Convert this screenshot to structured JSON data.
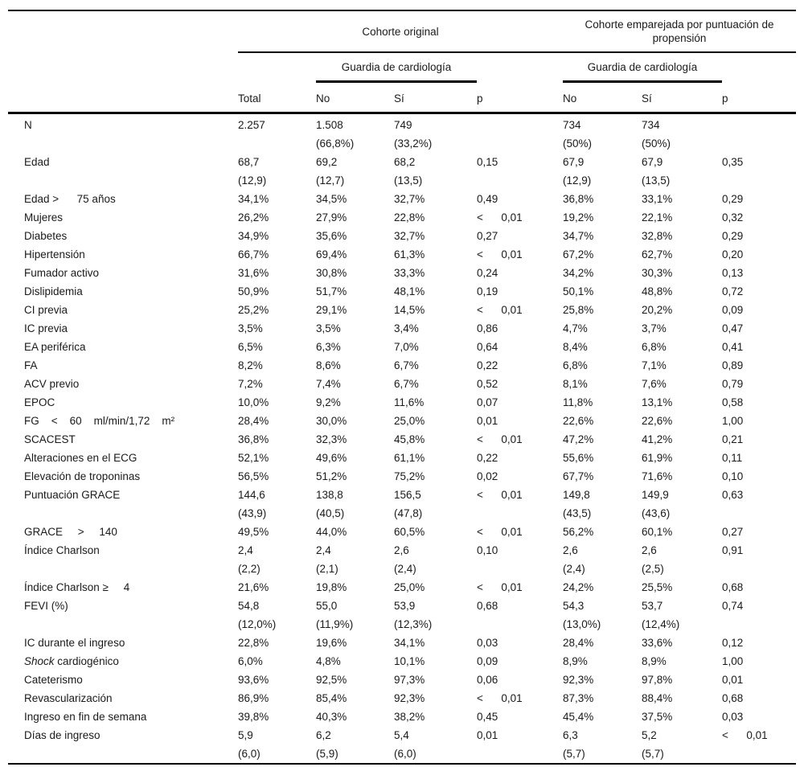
{
  "table": {
    "header": {
      "group_original": "Cohorte original",
      "group_matched": "Cohorte emparejada por puntuación de\npropensión",
      "subgroup_left": "Guardia de cardiología",
      "subgroup_right": "Guardia de cardiología",
      "columns": [
        "Total",
        "No",
        "Sí",
        "p",
        "No",
        "Sí",
        "p"
      ]
    },
    "rows": [
      {
        "label": "N",
        "cells": [
          "2.257",
          "1.508\n(66,8%)",
          "749\n(33,2%)",
          "",
          "734\n(50%)",
          "734\n(50%)",
          ""
        ]
      },
      {
        "label": "Edad",
        "cells": [
          "68,7\n(12,9)",
          "69,2\n(12,7)",
          "68,2\n(13,5)",
          "0,15",
          "67,9\n(12,9)",
          "67,9\n(13,5)",
          "0,35"
        ]
      },
      {
        "label": "Edad >      75 años",
        "cells": [
          "34,1%",
          "34,5%",
          "32,7%",
          "0,49",
          "36,8%",
          "33,1%",
          "0,29"
        ]
      },
      {
        "label": "Mujeres",
        "cells": [
          "26,2%",
          "27,9%",
          "22,8%",
          "<      0,01",
          "19,2%",
          "22,1%",
          "0,32"
        ]
      },
      {
        "label": "Diabetes",
        "cells": [
          "34,9%",
          "35,6%",
          "32,7%",
          "0,27",
          "34,7%",
          "32,8%",
          "0,29"
        ]
      },
      {
        "label": "Hipertensión",
        "cells": [
          "66,7%",
          "69,4%",
          "61,3%",
          "<      0,01",
          "67,2%",
          "62,7%",
          "0,20"
        ]
      },
      {
        "label": "Fumador activo",
        "cells": [
          "31,6%",
          "30,8%",
          "33,3%",
          "0,24",
          "34,2%",
          "30,3%",
          "0,13"
        ]
      },
      {
        "label": "Dislipidemia",
        "cells": [
          "50,9%",
          "51,7%",
          "48,1%",
          "0,19",
          "50,1%",
          "48,8%",
          "0,72"
        ]
      },
      {
        "label": "CI previa",
        "cells": [
          "25,2%",
          "29,1%",
          "14,5%",
          "<      0,01",
          "25,8%",
          "20,2%",
          "0,09"
        ]
      },
      {
        "label": "IC previa",
        "cells": [
          "3,5%",
          "3,5%",
          "3,4%",
          "0,86",
          "4,7%",
          "3,7%",
          "0,47"
        ]
      },
      {
        "label": "EA periférica",
        "cells": [
          "6,5%",
          "6,3%",
          "7,0%",
          "0,64",
          "8,4%",
          "6,8%",
          "0,41"
        ]
      },
      {
        "label": "FA",
        "cells": [
          "8,2%",
          "8,6%",
          "6,7%",
          "0,22",
          "6,8%",
          "7,1%",
          "0,89"
        ]
      },
      {
        "label": "ACV previo",
        "cells": [
          "7,2%",
          "7,4%",
          "6,7%",
          "0,52",
          "8,1%",
          "7,6%",
          "0,79"
        ]
      },
      {
        "label": "EPOC",
        "cells": [
          "10,0%",
          "9,2%",
          "11,6%",
          "0,07",
          "11,8%",
          "13,1%",
          "0,58"
        ]
      },
      {
        "label": "FG    <    60    ml/min/1,72    m²",
        "cells": [
          "28,4%",
          "30,0%",
          "25,0%",
          "0,01",
          "22,6%",
          "22,6%",
          "1,00"
        ]
      },
      {
        "label": "SCACEST",
        "cells": [
          "36,8%",
          "32,3%",
          "45,8%",
          "<      0,01",
          "47,2%",
          "41,2%",
          "0,21"
        ]
      },
      {
        "label": "Alteraciones en el ECG",
        "cells": [
          "52,1%",
          "49,6%",
          "61,1%",
          "0,22",
          "55,6%",
          "61,9%",
          "0,11"
        ]
      },
      {
        "label": "Elevación de troponinas",
        "cells": [
          "56,5%",
          "51,2%",
          "75,2%",
          "0,02",
          "67,7%",
          "71,6%",
          "0,10"
        ]
      },
      {
        "label": "Puntuación GRACE",
        "cells": [
          "144,6\n(43,9)",
          "138,8\n(40,5)",
          "156,5\n(47,8)",
          "<      0,01",
          "149,8\n(43,5)",
          "149,9\n(43,6)",
          "0,63"
        ]
      },
      {
        "label": "GRACE     >     140",
        "cells": [
          "49,5%",
          "44,0%",
          "60,5%",
          "<      0,01",
          "56,2%",
          "60,1%",
          "0,27"
        ]
      },
      {
        "label": "Índice Charlson",
        "cells": [
          "2,4\n(2,2)",
          "2,4\n(2,1)",
          "2,6\n(2,4)",
          "0,10",
          "2,6\n(2,4)",
          "2,6\n(2,5)",
          "0,91"
        ]
      },
      {
        "label": "Índice Charlson ≥     4",
        "cells": [
          "21,6%",
          "19,8%",
          "25,0%",
          "<      0,01",
          "24,2%",
          "25,5%",
          "0,68"
        ]
      },
      {
        "label": "FEVI (%)",
        "cells": [
          "54,8\n(12,0%)",
          "55,0\n(11,9%)",
          "53,9\n(12,3%)",
          "0,68",
          "54,3\n(13,0%)",
          "53,7\n(12,4%)",
          "0,74"
        ]
      },
      {
        "label": "IC durante el ingreso",
        "cells": [
          "22,8%",
          "19,6%",
          "34,1%",
          "0,03",
          "28,4%",
          "33,6%",
          "0,12"
        ]
      },
      {
        "label": "Shock cardiogénico",
        "italic_prefix": "Shock",
        "cells": [
          "6,0%",
          "4,8%",
          "10,1%",
          "0,09",
          "8,9%",
          "8,9%",
          "1,00"
        ]
      },
      {
        "label": "Cateterismo",
        "cells": [
          "93,6%",
          "92,5%",
          "97,3%",
          "0,06",
          "92,3%",
          "97,8%",
          "0,01"
        ]
      },
      {
        "label": "Revascularización",
        "cells": [
          "86,9%",
          "85,4%",
          "92,3%",
          "<      0,01",
          "87,3%",
          "88,4%",
          "0,68"
        ]
      },
      {
        "label": "Ingreso en fin de semana",
        "cells": [
          "39,8%",
          "40,3%",
          "38,2%",
          "0,45",
          "45,4%",
          "37,5%",
          "0,03"
        ]
      },
      {
        "label": "Días de ingreso",
        "cells": [
          "5,9\n(6,0)",
          "6,2\n(5,9)",
          "5,4\n(6,0)",
          "0,01",
          "6,3\n(5,7)",
          "5,2\n(5,7)",
          "<      0,01"
        ]
      }
    ]
  }
}
